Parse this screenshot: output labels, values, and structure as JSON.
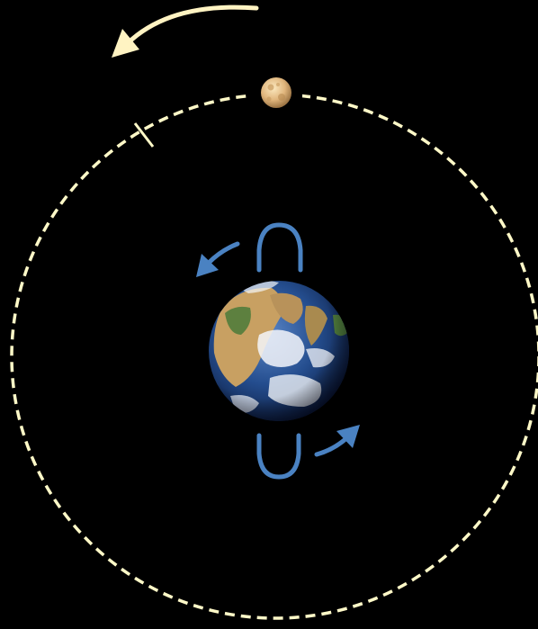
{
  "colors": {
    "background": "#000000",
    "orbit": "#FFF9C8",
    "moon_motion_arrow": "#FFF3C2",
    "rotation_arrows": "#4A82C2",
    "moon_light": "#F1D7A5",
    "moon_dark": "#B08550",
    "earth_ocean": "#2A4F94",
    "earth_land": "#C8A062",
    "earth_green": "#4A7A3A",
    "earth_cloud": "#F4F6FA"
  },
  "icons": {
    "moon": "moon-icon",
    "earth": "earth-icon",
    "orbit": "orbit-path",
    "moon_motion": "curved-arrow-icon",
    "earth_rotation": "rotation-arrow-icon"
  }
}
